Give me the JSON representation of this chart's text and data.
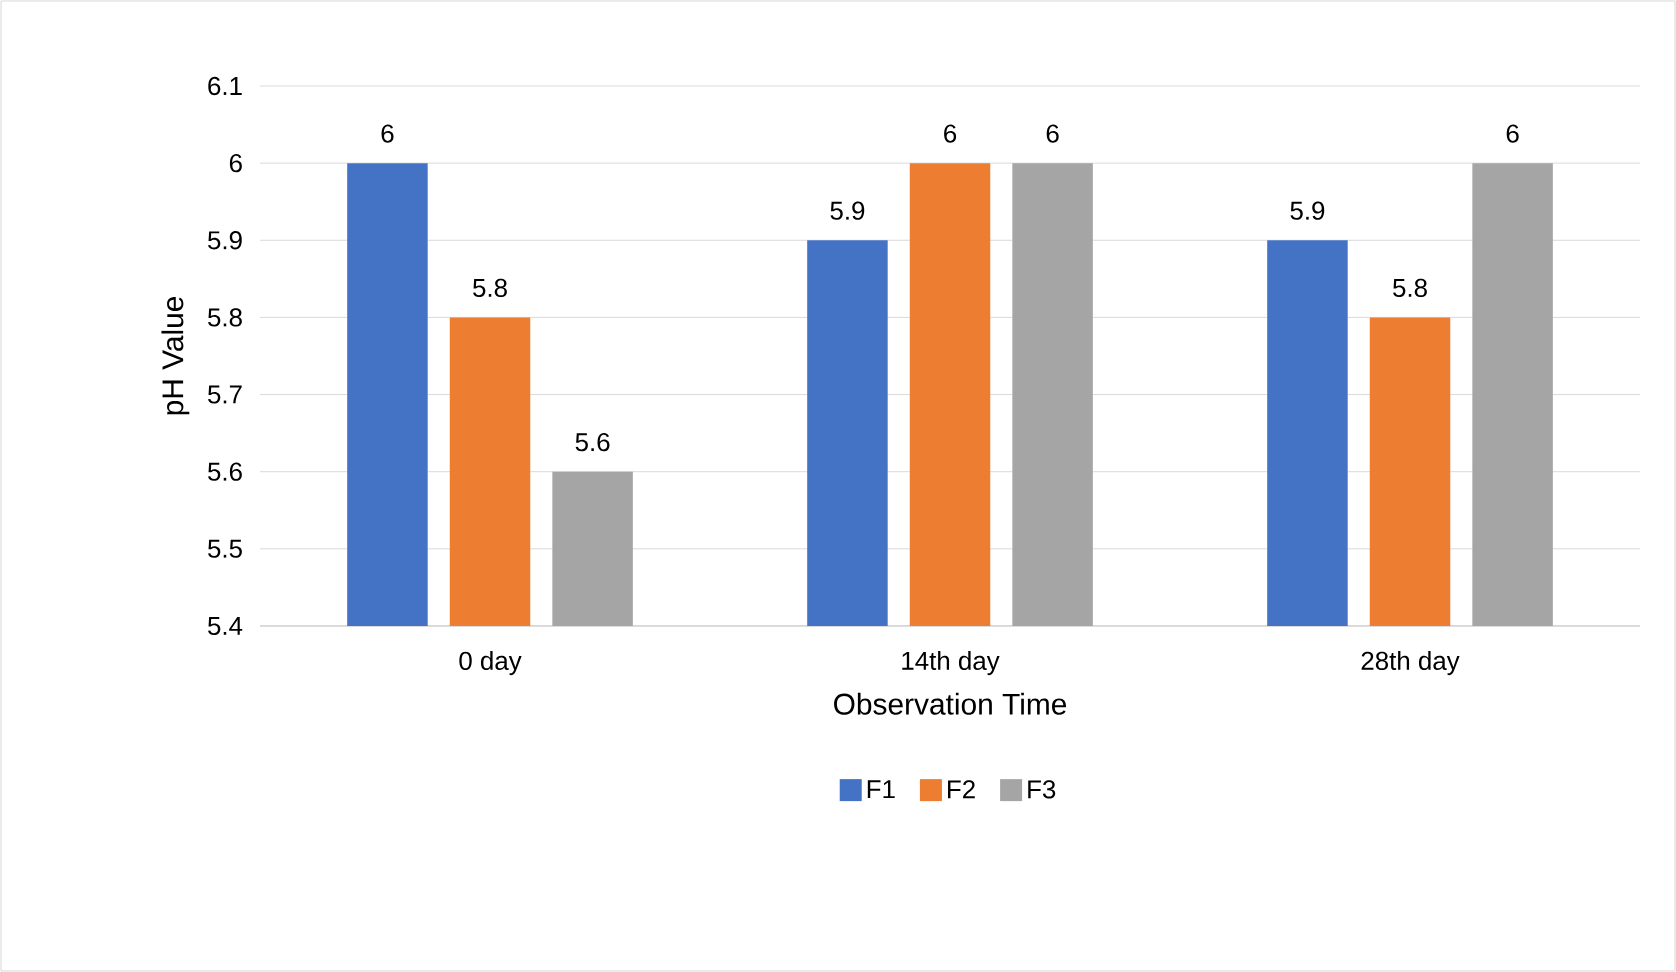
{
  "chart_data": {
    "type": "bar",
    "xlabel": "Observation Time",
    "ylabel": "pH Value",
    "categories": [
      "0 day",
      "14th day",
      "28th day"
    ],
    "series": [
      {
        "name": "F1",
        "color": "#4472c4",
        "values": [
          6,
          5.9,
          5.9
        ]
      },
      {
        "name": "F2",
        "color": "#ed7d31",
        "values": [
          5.8,
          6,
          5.8
        ]
      },
      {
        "name": "F3",
        "color": "#a5a5a5",
        "values": [
          5.6,
          6,
          6
        ]
      }
    ],
    "ylim": [
      5.4,
      6.1
    ],
    "yticks": [
      5.4,
      5.5,
      5.6,
      5.7,
      5.8,
      5.9,
      6,
      6.1
    ],
    "grid": "y",
    "legend": "bottom",
    "data_labels": true
  }
}
